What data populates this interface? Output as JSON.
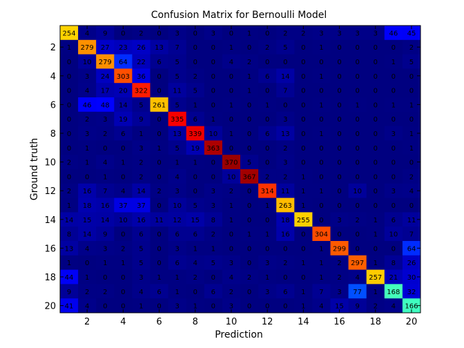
{
  "chart_data": {
    "type": "heatmap",
    "title": "Confusion Matrix for Bernoulli Model",
    "xlabel": "Prediction",
    "ylabel": "Ground truth",
    "xlim": [
      0.5,
      20.5
    ],
    "ylim": [
      0.5,
      20.5
    ],
    "x_ticks": [
      "2",
      "4",
      "6",
      "8",
      "10",
      "12",
      "14",
      "16",
      "18",
      "20"
    ],
    "y_ticks": [
      "2",
      "4",
      "6",
      "8",
      "10",
      "12",
      "14",
      "16",
      "18",
      "20"
    ],
    "color_range": [
      0,
      380
    ],
    "grid": false,
    "matrix": [
      [
        254,
        4,
        9,
        0,
        2,
        0,
        3,
        0,
        3,
        0,
        1,
        0,
        2,
        2,
        3,
        3,
        3,
        3,
        46,
        45
      ],
      [
        1,
        279,
        27,
        23,
        26,
        13,
        7,
        0,
        0,
        1,
        0,
        2,
        5,
        0,
        1,
        0,
        0,
        0,
        0,
        2
      ],
      [
        0,
        10,
        279,
        64,
        22,
        6,
        5,
        0,
        0,
        4,
        2,
        0,
        0,
        0,
        0,
        0,
        0,
        0,
        1,
        5
      ],
      [
        0,
        3,
        24,
        303,
        36,
        0,
        5,
        2,
        0,
        0,
        1,
        6,
        14,
        0,
        1,
        0,
        0,
        0,
        0,
        0
      ],
      [
        0,
        4,
        17,
        20,
        322,
        0,
        11,
        5,
        0,
        0,
        1,
        0,
        7,
        0,
        0,
        0,
        0,
        0,
        0,
        0
      ],
      [
        0,
        46,
        48,
        14,
        5,
        261,
        5,
        1,
        0,
        1,
        0,
        1,
        0,
        0,
        1,
        0,
        1,
        0,
        1,
        1
      ],
      [
        0,
        2,
        3,
        19,
        9,
        0,
        335,
        6,
        1,
        0,
        0,
        0,
        3,
        0,
        0,
        0,
        0,
        0,
        0,
        0
      ],
      [
        0,
        3,
        2,
        6,
        1,
        0,
        13,
        339,
        10,
        1,
        0,
        6,
        13,
        0,
        1,
        0,
        0,
        0,
        3,
        1
      ],
      [
        0,
        1,
        0,
        0,
        3,
        1,
        5,
        19,
        363,
        0,
        0,
        0,
        2,
        0,
        0,
        0,
        0,
        0,
        0,
        1
      ],
      [
        2,
        1,
        4,
        1,
        2,
        0,
        1,
        1,
        0,
        370,
        5,
        0,
        3,
        0,
        0,
        0,
        0,
        0,
        0,
        0
      ],
      [
        0,
        0,
        1,
        0,
        2,
        0,
        4,
        0,
        0,
        10,
        367,
        2,
        2,
        1,
        0,
        0,
        0,
        0,
        0,
        2
      ],
      [
        2,
        16,
        7,
        4,
        14,
        2,
        3,
        0,
        3,
        2,
        0,
        314,
        11,
        1,
        1,
        0,
        10,
        0,
        3,
        4
      ],
      [
        1,
        18,
        16,
        37,
        37,
        0,
        10,
        5,
        3,
        1,
        0,
        1,
        263,
        1,
        0,
        0,
        0,
        0,
        0,
        0
      ],
      [
        14,
        15,
        14,
        10,
        16,
        11,
        12,
        15,
        8,
        1,
        0,
        0,
        18,
        255,
        0,
        3,
        2,
        1,
        6,
        11
      ],
      [
        8,
        14,
        9,
        0,
        6,
        0,
        6,
        6,
        2,
        0,
        1,
        1,
        16,
        0,
        304,
        0,
        0,
        1,
        10,
        7
      ],
      [
        13,
        4,
        3,
        2,
        5,
        0,
        3,
        1,
        1,
        0,
        0,
        0,
        0,
        0,
        1,
        299,
        0,
        0,
        0,
        64
      ],
      [
        1,
        0,
        1,
        1,
        5,
        0,
        6,
        4,
        5,
        3,
        0,
        3,
        2,
        1,
        1,
        2,
        297,
        1,
        8,
        26
      ],
      [
        44,
        1,
        0,
        0,
        3,
        1,
        1,
        2,
        0,
        4,
        2,
        1,
        0,
        0,
        1,
        2,
        4,
        257,
        21,
        30
      ],
      [
        9,
        2,
        2,
        0,
        4,
        6,
        1,
        0,
        6,
        2,
        0,
        3,
        6,
        1,
        7,
        3,
        77,
        1,
        168,
        32
      ],
      [
        41,
        4,
        0,
        0,
        1,
        0,
        3,
        1,
        0,
        3,
        0,
        0,
        0,
        1,
        4,
        15,
        9,
        2,
        4,
        166
      ]
    ]
  }
}
